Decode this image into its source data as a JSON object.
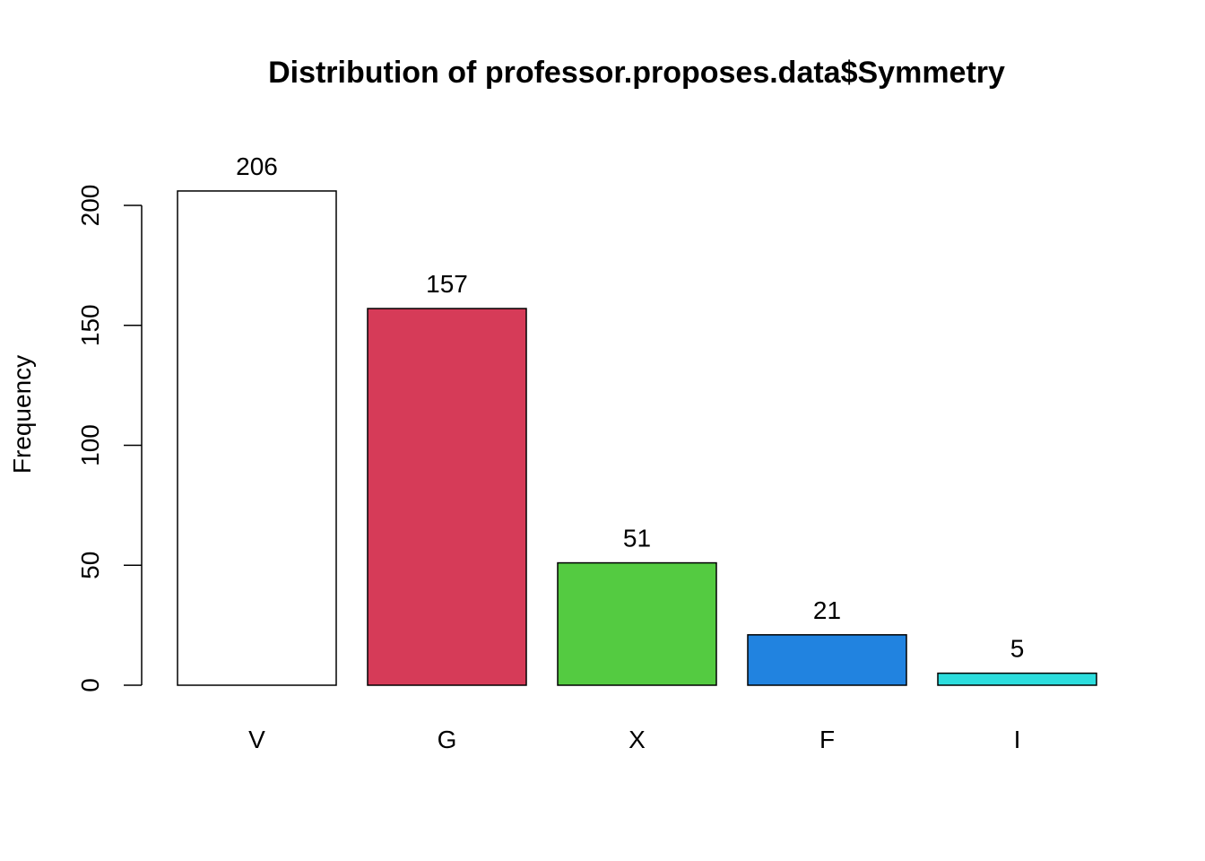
{
  "chart_data": {
    "type": "bar",
    "title": "Distribution of professor.proposes.data$Symmetry",
    "xlabel": "",
    "ylabel": "Frequency",
    "categories": [
      "V",
      "G",
      "X",
      "F",
      "I"
    ],
    "values": [
      206,
      157,
      51,
      21,
      5
    ],
    "data_labels": [
      "206",
      "157",
      "51",
      "21",
      "5"
    ],
    "colors": [
      "#FFFFFF",
      "#D63B58",
      "#54CB41",
      "#2183E0",
      "#2CDDDD"
    ],
    "ylim": [
      0,
      206
    ],
    "yticks": [
      0,
      50,
      100,
      150,
      200
    ],
    "ytick_labels": [
      "0",
      "50",
      "100",
      "150",
      "200"
    ],
    "grid": false,
    "legend": "none"
  }
}
